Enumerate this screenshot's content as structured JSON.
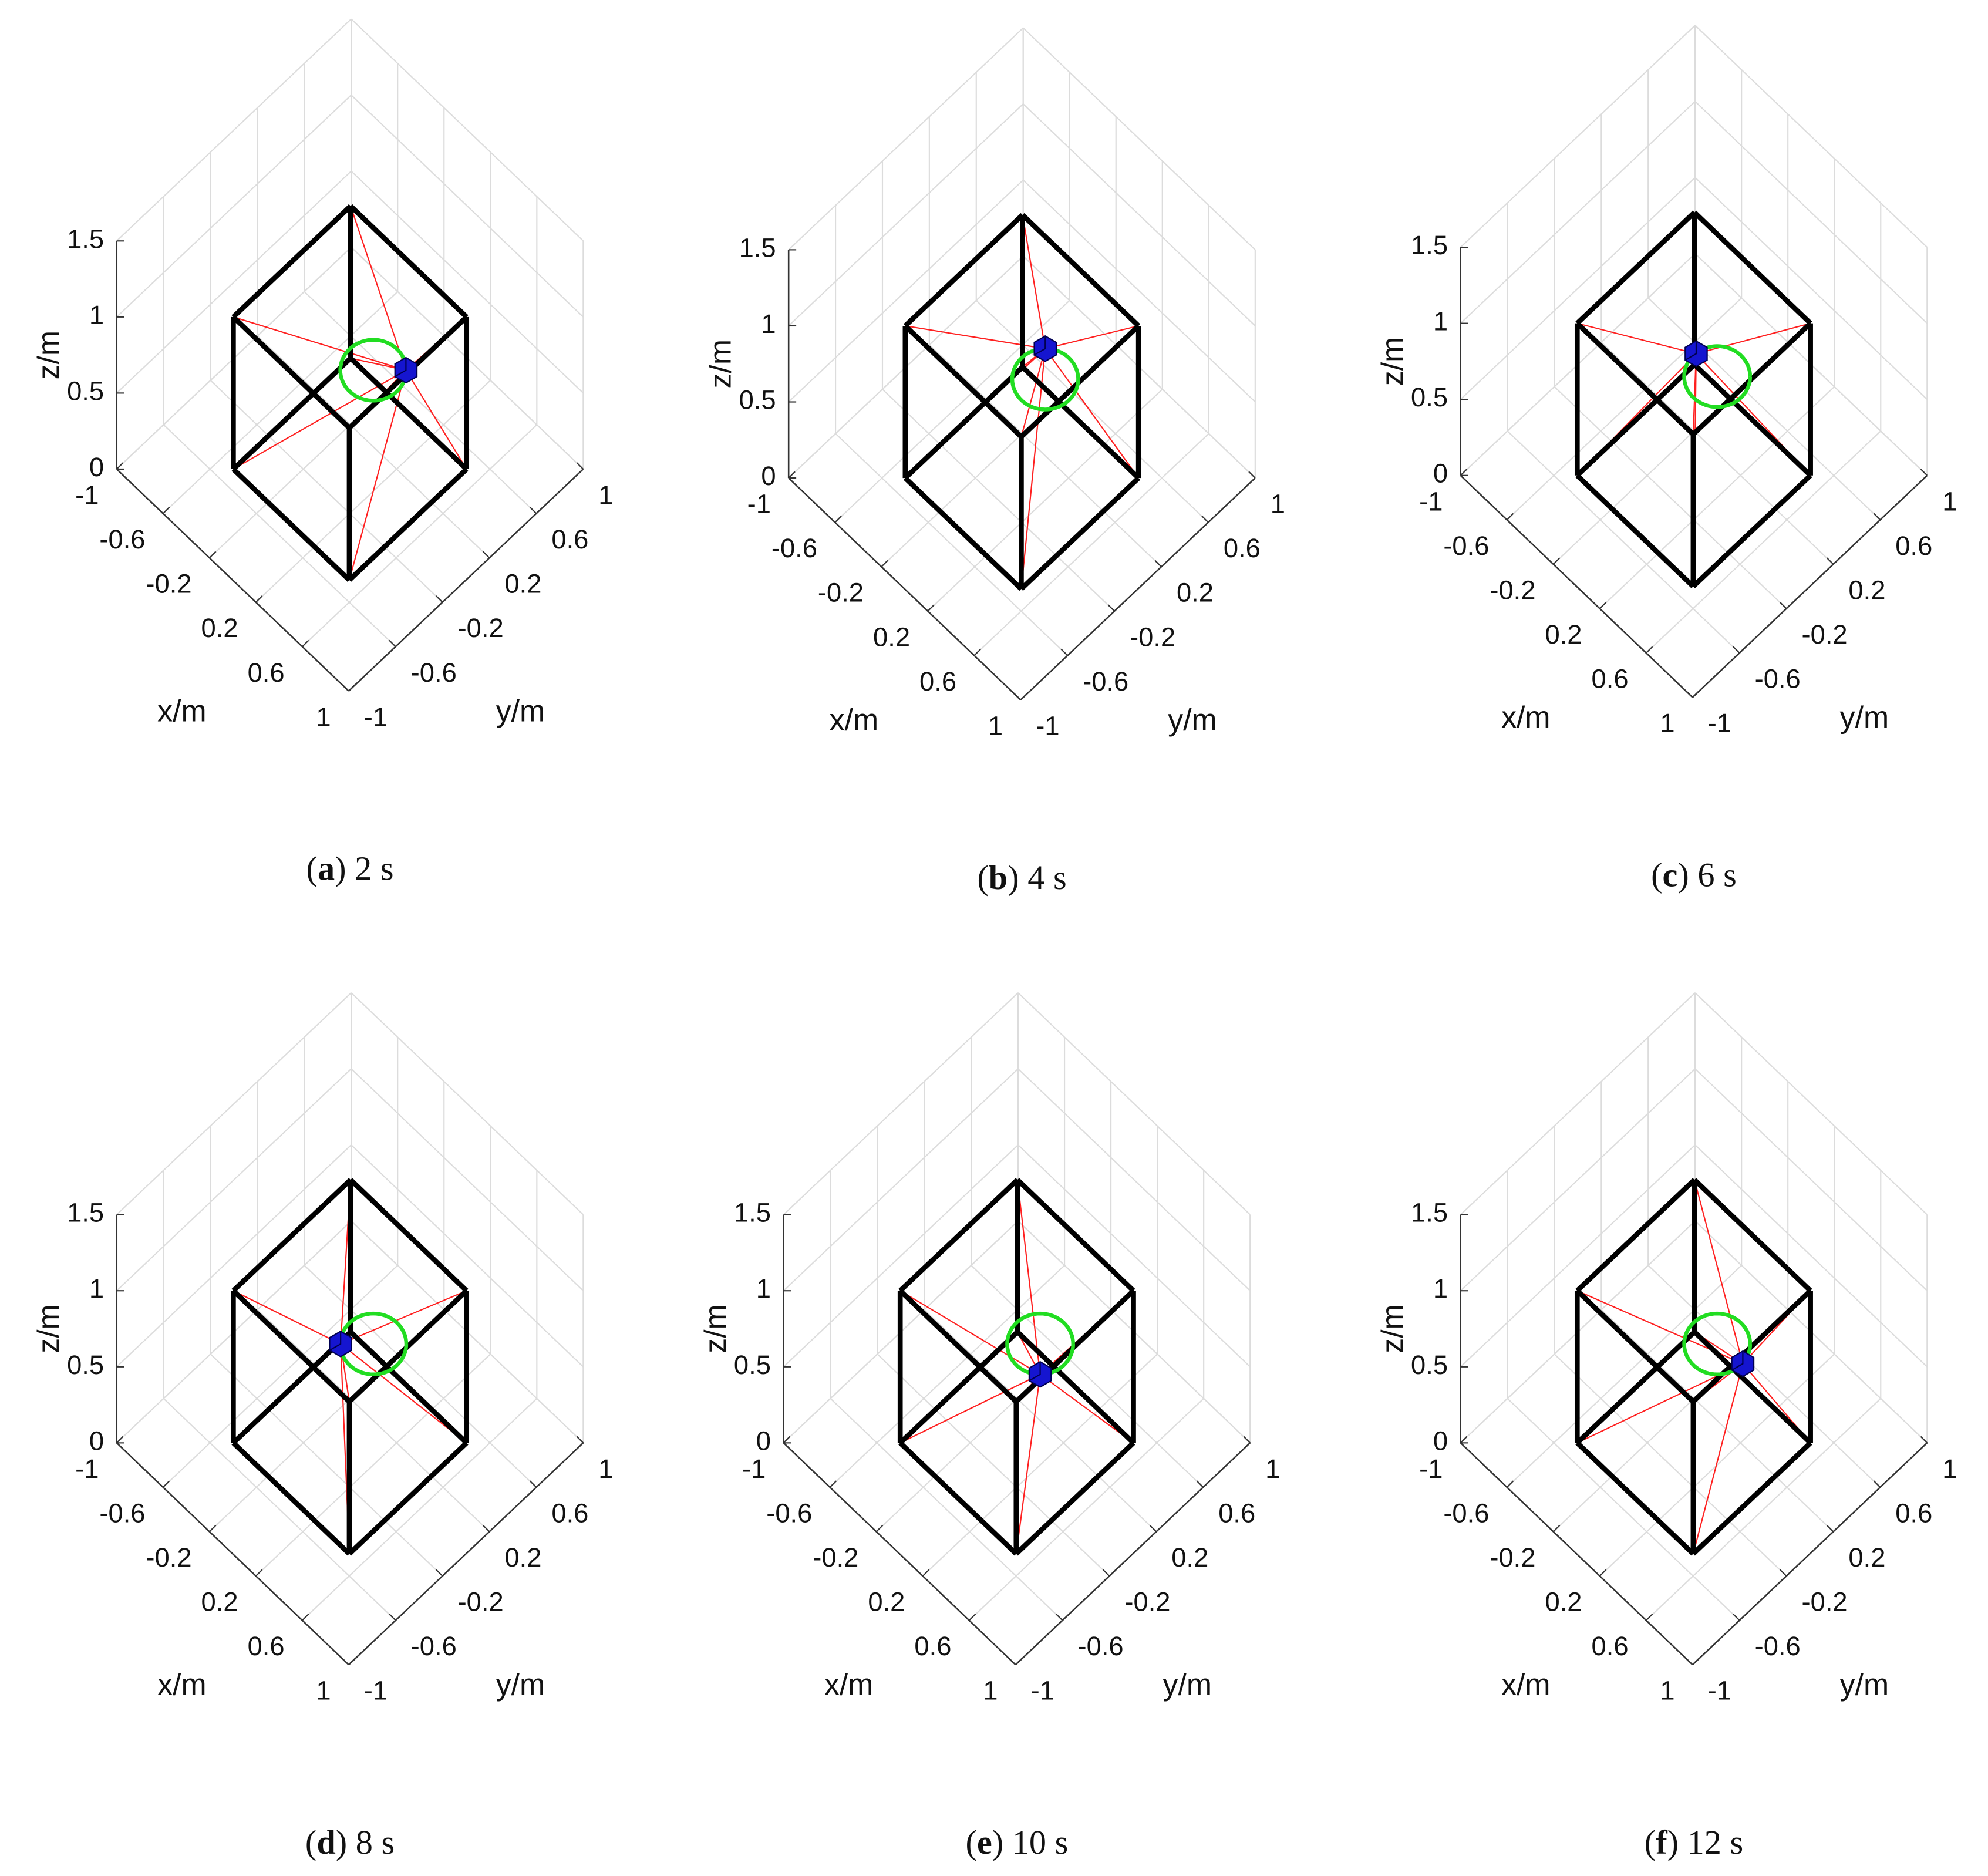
{
  "chart_data": [
    {
      "type": "3d-cable-robot",
      "caption": [
        "(",
        "a",
        ") 2 s"
      ],
      "xlabel": "x/m",
      "ylabel": "y/m",
      "zlabel": "z/m",
      "xlim": [
        -1,
        1
      ],
      "ylim": [
        -1,
        1
      ],
      "zlim": [
        0,
        1.5
      ],
      "xticks": [
        -1,
        -0.6,
        -0.2,
        0.2,
        0.6,
        1
      ],
      "yticks": [
        -1,
        -0.6,
        -0.2,
        0.2,
        0.6,
        1
      ],
      "zticks": [
        0,
        0.5,
        1,
        1.5
      ],
      "grid": true,
      "frame": {
        "half_width": 0.5,
        "height": 1,
        "color": "#000000"
      },
      "trajectory": {
        "center": [
          0.1,
          0.1,
          0.65
        ],
        "radius": 0.2,
        "color": "#22dd22"
      },
      "position": [
        0.24,
        0.24,
        0.65
      ],
      "body_color": "#1515d0",
      "cable_color": "#ff2020"
    },
    {
      "type": "3d-cable-robot",
      "caption": [
        "(",
        "b",
        ") 4 s"
      ],
      "xlabel": "x/m",
      "ylabel": "y/m",
      "zlabel": "z/m",
      "xlim": [
        -1,
        1
      ],
      "ylim": [
        -1,
        1
      ],
      "zlim": [
        0,
        1.5
      ],
      "xticks": [
        -1,
        -0.6,
        -0.2,
        0.2,
        0.6,
        1
      ],
      "yticks": [
        -1,
        -0.6,
        -0.2,
        0.2,
        0.6,
        1
      ],
      "zticks": [
        0,
        0.5,
        1,
        1.5
      ],
      "grid": true,
      "frame": {
        "half_width": 0.5,
        "height": 1,
        "color": "#000000"
      },
      "trajectory": {
        "center": [
          0.1,
          0.1,
          0.65
        ],
        "radius": 0.2,
        "color": "#22dd22"
      },
      "position": [
        0.1,
        0.1,
        0.85
      ],
      "body_color": "#1515d0",
      "cable_color": "#ff2020"
    },
    {
      "type": "3d-cable-robot",
      "caption": [
        "(",
        "c",
        ") 6 s"
      ],
      "xlabel": "x/m",
      "ylabel": "y/m",
      "zlabel": "z/m",
      "xlim": [
        -1,
        1
      ],
      "ylim": [
        -1,
        1
      ],
      "zlim": [
        0,
        1.5
      ],
      "xticks": [
        -1,
        -0.6,
        -0.2,
        0.2,
        0.6,
        1
      ],
      "yticks": [
        -1,
        -0.6,
        -0.2,
        0.2,
        0.6,
        1
      ],
      "zticks": [
        0,
        0.5,
        1,
        1.5
      ],
      "grid": true,
      "frame": {
        "half_width": 0.5,
        "height": 1,
        "color": "#000000"
      },
      "trajectory": {
        "center": [
          0.1,
          0.1,
          0.65
        ],
        "radius": 0.2,
        "color": "#22dd22"
      },
      "position": [
        0.01,
        0.01,
        0.8
      ],
      "body_color": "#1515d0",
      "cable_color": "#ff2020"
    },
    {
      "type": "3d-cable-robot",
      "caption": [
        "(",
        "d",
        ") 8 s"
      ],
      "xlabel": "x/m",
      "ylabel": "y/m",
      "zlabel": "z/m",
      "xlim": [
        -1,
        1
      ],
      "ylim": [
        -1,
        1
      ],
      "zlim": [
        0,
        1.5
      ],
      "xticks": [
        -1,
        -0.6,
        -0.2,
        0.2,
        0.6,
        1
      ],
      "yticks": [
        -1,
        -0.6,
        -0.2,
        0.2,
        0.6,
        1
      ],
      "zticks": [
        0,
        0.5,
        1,
        1.5
      ],
      "grid": true,
      "frame": {
        "half_width": 0.5,
        "height": 1,
        "color": "#000000"
      },
      "trajectory": {
        "center": [
          0.1,
          0.1,
          0.65
        ],
        "radius": 0.2,
        "color": "#22dd22"
      },
      "position": [
        -0.04,
        -0.04,
        0.65
      ],
      "body_color": "#1515d0",
      "cable_color": "#ff2020"
    },
    {
      "type": "3d-cable-robot",
      "caption": [
        "(",
        "e",
        ") 10 s"
      ],
      "xlabel": "x/m",
      "ylabel": "y/m",
      "zlabel": "z/m",
      "xlim": [
        -1,
        1
      ],
      "ylim": [
        -1,
        1
      ],
      "zlim": [
        0,
        1.5
      ],
      "xticks": [
        -1,
        -0.6,
        -0.2,
        0.2,
        0.6,
        1
      ],
      "yticks": [
        -1,
        -0.6,
        -0.2,
        0.2,
        0.6,
        1
      ],
      "zticks": [
        0,
        0.5,
        1,
        1.5
      ],
      "grid": true,
      "frame": {
        "half_width": 0.5,
        "height": 1,
        "color": "#000000"
      },
      "trajectory": {
        "center": [
          0.1,
          0.1,
          0.65
        ],
        "radius": 0.2,
        "color": "#22dd22"
      },
      "position": [
        0.1,
        0.1,
        0.45
      ],
      "body_color": "#1515d0",
      "cable_color": "#ff2020"
    },
    {
      "type": "3d-cable-robot",
      "caption": [
        "(",
        "f",
        ") 12 s"
      ],
      "xlabel": "x/m",
      "ylabel": "y/m",
      "zlabel": "z/m",
      "xlim": [
        -1,
        1
      ],
      "ylim": [
        -1,
        1
      ],
      "zlim": [
        0,
        1.5
      ],
      "xticks": [
        -1,
        -0.6,
        -0.2,
        0.2,
        0.6,
        1
      ],
      "yticks": [
        -1,
        -0.6,
        -0.2,
        0.2,
        0.6,
        1
      ],
      "zticks": [
        0,
        0.5,
        1,
        1.5
      ],
      "grid": true,
      "frame": {
        "half_width": 0.5,
        "height": 1,
        "color": "#000000"
      },
      "trajectory": {
        "center": [
          0.1,
          0.1,
          0.65
        ],
        "radius": 0.2,
        "color": "#22dd22"
      },
      "position": [
        0.21,
        0.21,
        0.52
      ],
      "body_color": "#1515d0",
      "cable_color": "#ff2020"
    }
  ]
}
